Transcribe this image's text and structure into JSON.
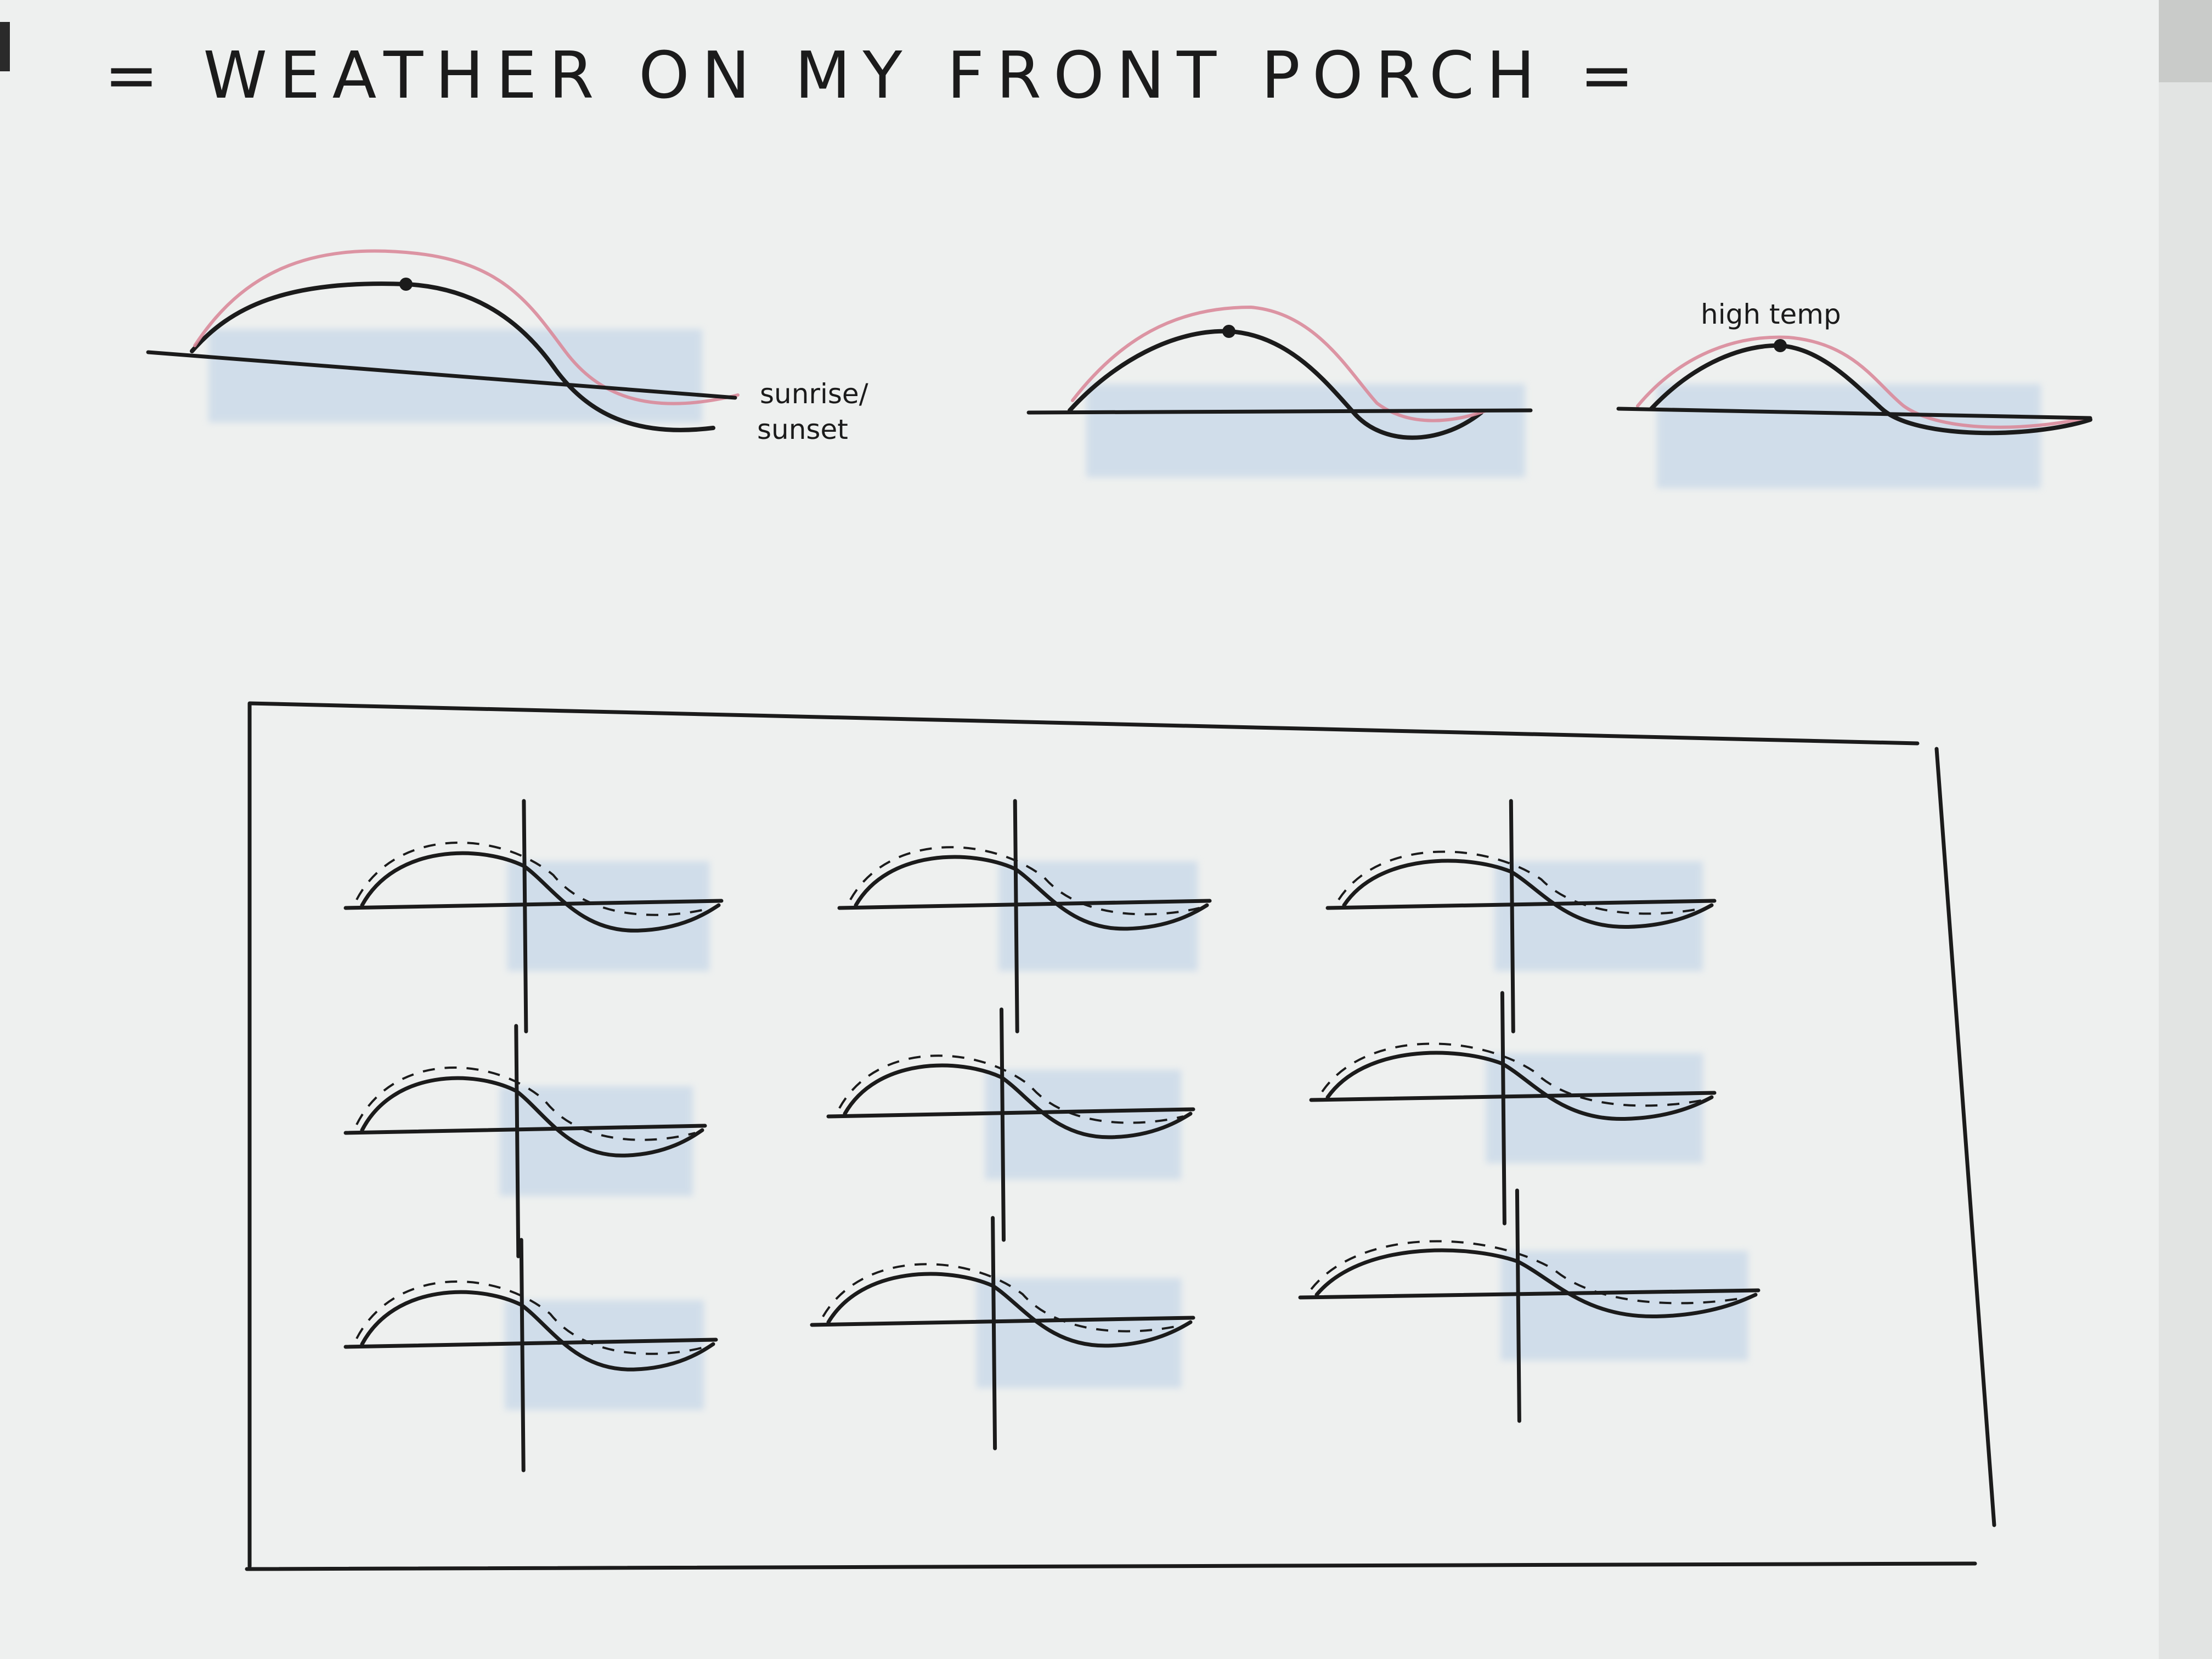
{
  "title": "= WEATHER ON MY FRONT PORCH =",
  "annotations": {
    "sunrise_line1": "sunrise/",
    "sunrise_line2": "sunset",
    "high_temp": "high temp"
  },
  "colors": {
    "paper": "#eef0ef",
    "ink": "#1b1b1b",
    "temp_line": "#d98a9a",
    "bleed_through": "#b9cfe6"
  },
  "sketch": {
    "top_row_count": 3,
    "grid_rows": 3,
    "grid_cols": 3,
    "markers": [
      "high-temp-dot",
      "high-temp-dot",
      "high-temp-dot"
    ]
  }
}
